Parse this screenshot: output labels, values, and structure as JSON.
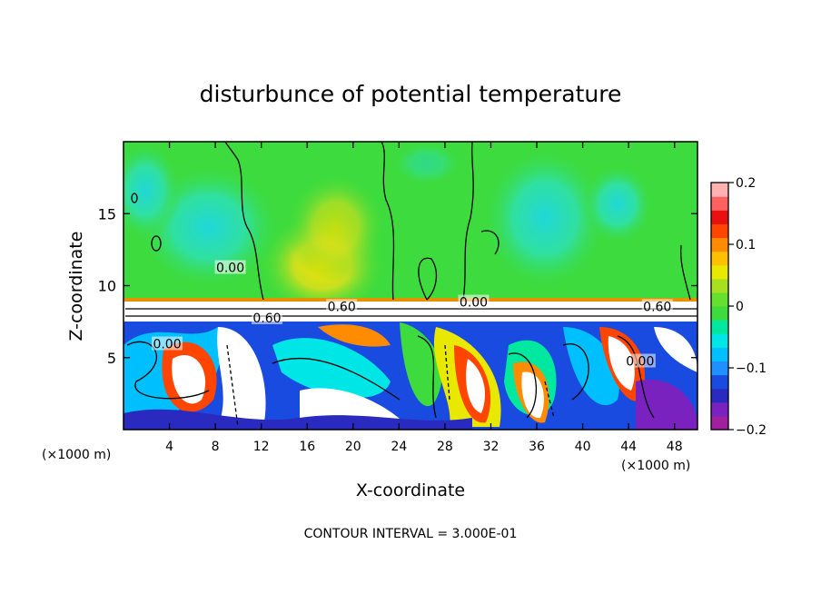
{
  "chart_data": {
    "type": "heatmap",
    "title": "disturbunce of potential temperature",
    "xlabel": "X-coordinate",
    "ylabel": "Z-coordinate",
    "x_unit_left": "(×1000 m)",
    "x_unit_right": "(×1000 m)",
    "xlim": [
      0,
      50
    ],
    "ylim": [
      0,
      20
    ],
    "x_ticks": [
      4,
      8,
      12,
      16,
      20,
      24,
      28,
      32,
      36,
      40,
      44,
      48
    ],
    "y_ticks": [
      5,
      10,
      15
    ],
    "colorbar": {
      "range": [
        -0.2,
        0.2
      ],
      "tick_values": [
        0.2,
        0.1,
        0,
        -0.1,
        -0.2
      ],
      "tick_labels": [
        "0.2",
        "0.1",
        "0",
        "−0.1",
        "−0.2"
      ],
      "colors": [
        "#a020a0",
        "#7a22c0",
        "#2a2ac0",
        "#1a4be0",
        "#1e90ff",
        "#00bfff",
        "#00e5e5",
        "#00e8a0",
        "#3ddb3d",
        "#66e030",
        "#a8e020",
        "#e8e800",
        "#ffc000",
        "#ff8c00",
        "#ff4500",
        "#e81010",
        "#ff6060",
        "#ffb0b0"
      ]
    },
    "contour_labels": [
      {
        "text": "0.00",
        "x": 9.3,
        "z": 11.2
      },
      {
        "text": "0.00",
        "x": 3.8,
        "z": 5.9
      },
      {
        "text": "0.60",
        "x": 19.0,
        "z": 8.5
      },
      {
        "text": "0.60",
        "x": 12.5,
        "z": 7.7
      },
      {
        "text": "0.00",
        "x": 30.5,
        "z": 8.8
      },
      {
        "text": "0.60",
        "x": 46.5,
        "z": 8.5
      },
      {
        "text": "0.00",
        "x": 45.0,
        "z": 4.7
      }
    ],
    "footer": "CONTOUR INTERVAL = 3.000E-01"
  },
  "colors": {
    "upper_green": "#3ddb3d",
    "cyan_patch": "#30e0b0",
    "yellow_patch": "#e8e800",
    "lower_blue": "#1a4be0"
  }
}
